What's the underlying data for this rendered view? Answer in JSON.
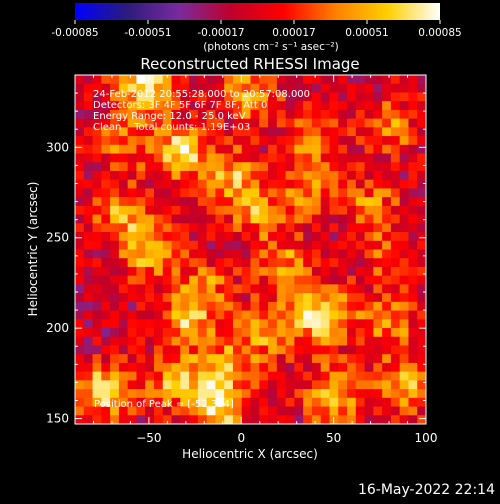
{
  "colorbar": {
    "tick_labels": [
      "-0.00085",
      "-0.00051",
      "-0.00017",
      "0.00017",
      "0.00051",
      "0.00085"
    ],
    "unit_label": "(photons cm⁻² s⁻¹ asec⁻²)",
    "colors": [
      "#0000ff",
      "#2c1c7c",
      "#7a2a9e",
      "#c0002a",
      "#ff0000",
      "#ff8000",
      "#ffd000",
      "#ffffff"
    ]
  },
  "image_info": {
    "lines": [
      "24-Feb-2012 20:55:28.000 to 20:57:08.000",
      "Detectors: 3F 4F 5F 6F 7F 8F, Att 0",
      "Energy Range: 12.0 - 25.0 keV",
      "Clean    Total counts: 1.19E+03"
    ],
    "peak_text": "Position of Peak = [-52,334]"
  },
  "footer": {
    "timestamp": "16-May-2022 22:14"
  },
  "chart_data": {
    "type": "heatmap",
    "title": "Reconstructed RHESSI Image",
    "xlabel": "Heliocentric X (arcsec)",
    "ylabel": "Heliocentric Y (arcsec)",
    "xlim": [
      -90,
      100
    ],
    "ylim": [
      147,
      340
    ],
    "xticks": [
      -50,
      0,
      50,
      100
    ],
    "yticks": [
      150,
      200,
      250,
      300
    ],
    "xtick_labels": [
      "−50",
      "0",
      "50",
      "100"
    ],
    "ytick_labels": [
      "150",
      "200",
      "250",
      "300"
    ],
    "color_range": [
      -0.00085,
      0.00085
    ],
    "peak_position": [
      -52,
      334
    ],
    "sources": [
      {
        "x": -52,
        "y": 334,
        "intensity": 0.00085
      },
      {
        "x": 5,
        "y": 330,
        "intensity": 0.0006
      },
      {
        "x": 80,
        "y": 312,
        "intensity": 0.0005
      },
      {
        "x": -65,
        "y": 303,
        "intensity": 0.0004
      },
      {
        "x": -33,
        "y": 297,
        "intensity": 0.00075
      },
      {
        "x": 40,
        "y": 303,
        "intensity": 0.00045
      },
      {
        "x": -5,
        "y": 283,
        "intensity": 0.0006
      },
      {
        "x": 35,
        "y": 277,
        "intensity": 0.0004
      },
      {
        "x": -65,
        "y": 263,
        "intensity": 0.00055
      },
      {
        "x": 10,
        "y": 263,
        "intensity": 0.0005
      },
      {
        "x": 70,
        "y": 268,
        "intensity": 0.00045
      },
      {
        "x": -50,
        "y": 242,
        "intensity": 0.0006
      },
      {
        "x": 25,
        "y": 235,
        "intensity": 0.0005
      },
      {
        "x": 80,
        "y": 240,
        "intensity": 0.0004
      },
      {
        "x": -20,
        "y": 223,
        "intensity": 0.00045
      },
      {
        "x": -30,
        "y": 205,
        "intensity": 0.0006
      },
      {
        "x": 15,
        "y": 200,
        "intensity": 0.00055
      },
      {
        "x": 45,
        "y": 207,
        "intensity": 0.00085
      },
      {
        "x": 80,
        "y": 202,
        "intensity": 0.0005
      },
      {
        "x": -5,
        "y": 183,
        "intensity": 0.00045
      },
      {
        "x": -75,
        "y": 165,
        "intensity": 0.00075
      },
      {
        "x": -35,
        "y": 172,
        "intensity": 0.0006
      },
      {
        "x": -15,
        "y": 161,
        "intensity": 0.0005
      },
      {
        "x": 50,
        "y": 163,
        "intensity": 0.0007
      },
      {
        "x": 88,
        "y": 168,
        "intensity": 0.0006
      },
      {
        "x": -10,
        "y": 153,
        "intensity": 0.0004
      }
    ]
  }
}
